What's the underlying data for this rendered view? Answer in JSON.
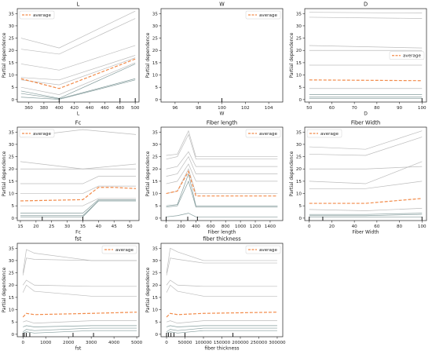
{
  "figure": {
    "legend_label": "average",
    "ylabel": "Partial dependence"
  },
  "colors": {
    "ice": "#b0b0b0",
    "ice_dark": "#6e8b8b",
    "average": "#f28b4a",
    "axis": "#222222",
    "grid": "#d8d8d8"
  },
  "chart_data": [
    {
      "type": "line",
      "title": "L",
      "xlabel": "L",
      "xlim": [
        345,
        505
      ],
      "ylim": [
        -1,
        37
      ],
      "xticks": [
        360,
        380,
        400,
        420,
        440,
        460,
        480,
        500
      ],
      "yticks": [
        0,
        5,
        10,
        15,
        20,
        25,
        30,
        35
      ],
      "rug": [
        400,
        480,
        500
      ],
      "legend": "top-left",
      "ice": [
        {
          "x": [
            350,
            400,
            500
          ],
          "y": [
            25,
            21,
            36
          ]
        },
        {
          "x": [
            350,
            400,
            500
          ],
          "y": [
            20.5,
            18.5,
            33
          ]
        },
        {
          "x": [
            350,
            400,
            500
          ],
          "y": [
            14.5,
            12,
            22
          ]
        },
        {
          "x": [
            350,
            400,
            500
          ],
          "y": [
            9,
            8,
            18
          ]
        },
        {
          "x": [
            350,
            400,
            500
          ],
          "y": [
            8,
            6,
            17
          ]
        },
        {
          "x": [
            350,
            400,
            500
          ],
          "y": [
            5,
            2,
            15
          ]
        },
        {
          "x": [
            350,
            400,
            500
          ],
          "y": [
            3.5,
            0.5,
            14.5
          ]
        },
        {
          "x": [
            350,
            400,
            500
          ],
          "y": [
            2.5,
            0.3,
            8.5
          ]
        },
        {
          "x": [
            350,
            400,
            500
          ],
          "y": [
            1,
            0.1,
            8
          ]
        }
      ],
      "average": {
        "x": [
          350,
          400,
          500
        ],
        "y": [
          8.5,
          4.5,
          16.5
        ]
      }
    },
    {
      "type": "line",
      "title": "W",
      "xlabel": "W",
      "xlim": [
        94.8,
        105.2
      ],
      "ylim": [
        -1,
        37
      ],
      "xticks": [
        96,
        98,
        100,
        102,
        104
      ],
      "yticks": [
        0,
        5,
        10,
        15,
        20,
        25,
        30,
        35
      ],
      "rug": [
        100
      ],
      "legend": "top-right",
      "ice": [],
      "average": {
        "x": [],
        "y": []
      }
    },
    {
      "type": "line",
      "title": "D",
      "xlabel": "D",
      "xlim": [
        48,
        102
      ],
      "ylim": [
        -1,
        37
      ],
      "xticks": [
        50,
        60,
        70,
        80,
        90,
        100
      ],
      "yticks": [
        0,
        5,
        10,
        15,
        20,
        25,
        30,
        35
      ],
      "rug": [
        100
      ],
      "legend": "right",
      "ice": [
        {
          "x": [
            50,
            100
          ],
          "y": [
            35.5,
            35.2
          ]
        },
        {
          "x": [
            50,
            100
          ],
          "y": [
            33.5,
            33
          ]
        },
        {
          "x": [
            50,
            100
          ],
          "y": [
            22,
            21
          ]
        },
        {
          "x": [
            50,
            100
          ],
          "y": [
            20,
            20
          ]
        },
        {
          "x": [
            50,
            100
          ],
          "y": [
            14,
            14
          ]
        },
        {
          "x": [
            50,
            100
          ],
          "y": [
            4.5,
            4.5
          ]
        },
        {
          "x": [
            50,
            100
          ],
          "y": [
            2,
            2
          ]
        },
        {
          "x": [
            50,
            100
          ],
          "y": [
            1,
            1
          ]
        },
        {
          "x": [
            50,
            100
          ],
          "y": [
            0.5,
            0.5
          ]
        }
      ],
      "average": {
        "x": [
          50,
          100
        ],
        "y": [
          8,
          7.7
        ]
      }
    },
    {
      "type": "line",
      "title": "Fc",
      "xlabel": "Fc",
      "xlim": [
        14,
        53
      ],
      "ylim": [
        -1,
        37
      ],
      "xticks": [
        15,
        20,
        25,
        30,
        35,
        40,
        45,
        50
      ],
      "yticks": [
        0,
        5,
        10,
        15,
        20,
        25,
        30,
        35
      ],
      "rug": [
        22,
        35
      ],
      "legend": "top-left",
      "ice": [
        {
          "x": [
            15,
            35,
            52
          ],
          "y": [
            33,
            36,
            34
          ]
        },
        {
          "x": [
            15,
            35,
            52
          ],
          "y": [
            23,
            20,
            22
          ]
        },
        {
          "x": [
            15,
            35,
            52
          ],
          "y": [
            20,
            20,
            20
          ]
        },
        {
          "x": [
            15,
            35,
            40,
            52
          ],
          "y": [
            14,
            14,
            17,
            17
          ]
        },
        {
          "x": [
            15,
            35,
            40,
            52
          ],
          "y": [
            10,
            10,
            13,
            13
          ]
        },
        {
          "x": [
            15,
            35,
            40,
            52
          ],
          "y": [
            5,
            5,
            8,
            8
          ]
        },
        {
          "x": [
            15,
            35,
            40,
            52
          ],
          "y": [
            2,
            2,
            7.5,
            7.5
          ]
        },
        {
          "x": [
            15,
            35,
            40,
            52
          ],
          "y": [
            1,
            1,
            7,
            7
          ]
        },
        {
          "x": [
            15,
            35,
            40,
            52
          ],
          "y": [
            0.5,
            0.5,
            7,
            7
          ]
        }
      ],
      "average": {
        "x": [
          15,
          35,
          40,
          45,
          52
        ],
        "y": [
          7,
          7.5,
          12.5,
          12.5,
          12
        ]
      }
    },
    {
      "type": "line",
      "title": "Fiber length",
      "xlabel": "Fiber length",
      "xlim": [
        -70,
        1570
      ],
      "ylim": [
        -1,
        37
      ],
      "xticks": [
        0,
        200,
        400,
        600,
        800,
        1000,
        1200,
        1400
      ],
      "yticks": [
        0,
        5,
        10,
        15,
        20,
        25,
        30,
        35
      ],
      "rug": [
        0,
        290,
        420
      ],
      "legend": "top-right",
      "ice": [
        {
          "x": [
            0,
            150,
            300,
            400,
            1500
          ],
          "y": [
            25.5,
            26,
            35.5,
            25,
            25
          ]
        },
        {
          "x": [
            0,
            150,
            300,
            400,
            1500
          ],
          "y": [
            24,
            25,
            34,
            24,
            24
          ]
        },
        {
          "x": [
            0,
            150,
            300,
            400,
            1500
          ],
          "y": [
            20,
            21,
            27,
            21,
            21
          ]
        },
        {
          "x": [
            0,
            150,
            300,
            400,
            1500
          ],
          "y": [
            17,
            18,
            25,
            18,
            18
          ]
        },
        {
          "x": [
            0,
            150,
            300,
            400,
            1500
          ],
          "y": [
            14,
            15,
            22,
            15,
            15
          ]
        },
        {
          "x": [
            0,
            150,
            300,
            400,
            1500
          ],
          "y": [
            10,
            11,
            20,
            10,
            10
          ]
        },
        {
          "x": [
            0,
            150,
            300,
            400,
            1500
          ],
          "y": [
            5,
            5.5,
            18,
            5,
            5
          ]
        },
        {
          "x": [
            0,
            150,
            300,
            400,
            1500
          ],
          "y": [
            4.5,
            5,
            15,
            4.5,
            4.5
          ]
        },
        {
          "x": [
            0,
            150,
            300,
            400,
            1500
          ],
          "y": [
            0.5,
            1,
            2,
            0.5,
            0.5
          ]
        }
      ],
      "average": {
        "x": [
          0,
          150,
          300,
          400,
          1500
        ],
        "y": [
          10,
          11,
          19,
          9,
          9
        ]
      }
    },
    {
      "type": "line",
      "title": "Fiber Width",
      "xlabel": "Fiber Width",
      "xlim": [
        -4,
        104
      ],
      "ylim": [
        -1,
        37
      ],
      "xticks": [
        0,
        20,
        40,
        60,
        80,
        100
      ],
      "yticks": [
        0,
        5,
        10,
        15,
        20,
        25,
        30,
        35
      ],
      "rug": [
        0,
        12,
        100
      ],
      "legend": "top-left",
      "ice": [
        {
          "x": [
            0,
            50,
            100
          ],
          "y": [
            29,
            28,
            35.5
          ]
        },
        {
          "x": [
            0,
            50,
            100
          ],
          "y": [
            26,
            25.5,
            33
          ]
        },
        {
          "x": [
            0,
            50,
            100
          ],
          "y": [
            20,
            20,
            21
          ]
        },
        {
          "x": [
            0,
            50,
            100
          ],
          "y": [
            15,
            14,
            23
          ]
        },
        {
          "x": [
            0,
            50,
            100
          ],
          "y": [
            12,
            12,
            15
          ]
        },
        {
          "x": [
            0,
            50,
            100
          ],
          "y": [
            3.5,
            3,
            4
          ]
        },
        {
          "x": [
            0,
            50,
            100
          ],
          "y": [
            1.5,
            1.5,
            2
          ]
        },
        {
          "x": [
            0,
            50,
            100
          ],
          "y": [
            1,
            1,
            1.5
          ]
        },
        {
          "x": [
            0,
            50,
            100
          ],
          "y": [
            0.5,
            0.5,
            0.5
          ]
        }
      ],
      "average": {
        "x": [
          0,
          50,
          100
        ],
        "y": [
          6,
          6,
          8
        ]
      }
    },
    {
      "type": "line",
      "title": "fst",
      "xlabel": "fst",
      "xlim": [
        -250,
        5100
      ],
      "ylim": [
        -1,
        37
      ],
      "xticks": [
        0,
        1000,
        2000,
        3000,
        4000,
        5000
      ],
      "yticks": [
        0,
        5,
        10,
        15,
        20,
        25,
        30,
        35
      ],
      "rug": [
        0,
        60,
        150,
        300,
        2200,
        3100
      ],
      "legend": "top-right",
      "ice": [
        {
          "x": [
            0,
            150,
            500,
            3000,
            5000
          ],
          "y": [
            25,
            34.5,
            33,
            30,
            30
          ]
        },
        {
          "x": [
            0,
            150,
            500,
            3000,
            5000
          ],
          "y": [
            24,
            31,
            30.5,
            30,
            30
          ]
        },
        {
          "x": [
            0,
            150,
            500,
            3000,
            5000
          ],
          "y": [
            20,
            22,
            20,
            19.5,
            19.5
          ]
        },
        {
          "x": [
            0,
            150,
            500,
            3000,
            5000
          ],
          "y": [
            17,
            20,
            17.5,
            15.5,
            15.5
          ]
        },
        {
          "x": [
            0,
            150,
            500,
            3000,
            5000
          ],
          "y": [
            5,
            5.5,
            4.5,
            5.5,
            5.5
          ]
        },
        {
          "x": [
            0,
            150,
            500,
            3000,
            5000
          ],
          "y": [
            3,
            3.5,
            3,
            3.5,
            3.5
          ]
        },
        {
          "x": [
            0,
            150,
            500,
            3000,
            5000
          ],
          "y": [
            1,
            2,
            1.5,
            2.5,
            2.5
          ]
        },
        {
          "x": [
            0,
            150,
            500,
            3000,
            5000
          ],
          "y": [
            0.5,
            1,
            0.5,
            1.5,
            1.5
          ]
        }
      ],
      "average": {
        "x": [
          0,
          150,
          500,
          3000,
          5000
        ],
        "y": [
          7,
          8.5,
          8,
          8.5,
          9
        ]
      }
    },
    {
      "type": "line",
      "title": "fiber thickness",
      "xlabel": "fiber thickness",
      "xlim": [
        -15000,
        315000
      ],
      "ylim": [
        -1,
        37
      ],
      "xticks": [
        0,
        50000,
        100000,
        150000,
        200000,
        250000,
        300000
      ],
      "yticks": [
        0,
        5,
        10,
        15,
        20,
        25,
        30,
        35
      ],
      "rug": [
        0,
        5000,
        12000,
        20000,
        50000,
        180000
      ],
      "legend": "top-right",
      "ice": [
        {
          "x": [
            0,
            10000,
            30000,
            100000,
            300000
          ],
          "y": [
            25,
            35,
            33.5,
            30,
            30
          ]
        },
        {
          "x": [
            0,
            10000,
            30000,
            100000,
            300000
          ],
          "y": [
            24,
            31,
            30.5,
            29,
            29
          ]
        },
        {
          "x": [
            0,
            10000,
            30000,
            100000,
            300000
          ],
          "y": [
            20,
            22,
            20,
            19.5,
            19.5
          ]
        },
        {
          "x": [
            0,
            10000,
            30000,
            100000,
            300000
          ],
          "y": [
            17,
            20,
            17.5,
            15.5,
            15.5
          ]
        },
        {
          "x": [
            0,
            10000,
            30000,
            100000,
            300000
          ],
          "y": [
            5,
            5.5,
            4.5,
            5.5,
            5.5
          ]
        },
        {
          "x": [
            0,
            10000,
            30000,
            100000,
            300000
          ],
          "y": [
            3,
            3.5,
            3,
            3.5,
            3.5
          ]
        },
        {
          "x": [
            0,
            10000,
            30000,
            100000,
            300000
          ],
          "y": [
            1,
            2,
            1.5,
            2.5,
            2.5
          ]
        },
        {
          "x": [
            0,
            10000,
            30000,
            100000,
            300000
          ],
          "y": [
            0.5,
            1,
            0.5,
            1.5,
            1.5
          ]
        }
      ],
      "average": {
        "x": [
          0,
          10000,
          30000,
          100000,
          300000
        ],
        "y": [
          7,
          8.5,
          8,
          8.5,
          9
        ]
      }
    }
  ]
}
